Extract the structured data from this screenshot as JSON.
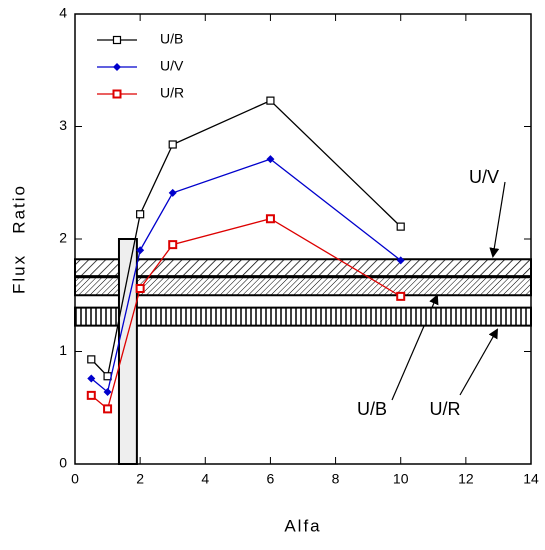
{
  "chart_data": {
    "type": "line",
    "xlabel": "Alfa",
    "ylabel": "Flux   Ratio",
    "xlim": [
      0,
      14
    ],
    "xticks": [
      0,
      2,
      4,
      6,
      8,
      10,
      12,
      14
    ],
    "ylim": [
      0,
      4
    ],
    "yticks": [
      0,
      1,
      2,
      3,
      4
    ],
    "legend": "upper left",
    "x": [
      0.5,
      1,
      2,
      3,
      6,
      10
    ],
    "series": [
      {
        "name": "U/B",
        "color": "#000000",
        "marker": "open-square",
        "values": [
          0.93,
          0.78,
          2.22,
          2.84,
          3.23,
          2.11
        ]
      },
      {
        "name": "U/V",
        "color": "#0000cc",
        "marker": "diamond",
        "values": [
          0.76,
          0.64,
          1.9,
          2.41,
          2.71,
          1.81
        ]
      },
      {
        "name": "U/R",
        "color": "#dd0000",
        "marker": "dot-square",
        "values": [
          0.61,
          0.49,
          1.56,
          1.95,
          2.18,
          1.49
        ]
      }
    ],
    "regions": [
      {
        "label": "U/V",
        "pattern": "diagonal",
        "ylim": [
          1.67,
          1.82
        ]
      },
      {
        "label": "U/B",
        "pattern": "diagonal-fine",
        "ylim": [
          1.5,
          1.66
        ]
      },
      {
        "label": "U/R",
        "pattern": "vertical",
        "ylim": [
          1.23,
          1.39
        ]
      },
      {
        "pattern": "solid",
        "xlim": [
          1.35,
          1.9
        ],
        "ylim": [
          0,
          2
        ]
      }
    ]
  }
}
